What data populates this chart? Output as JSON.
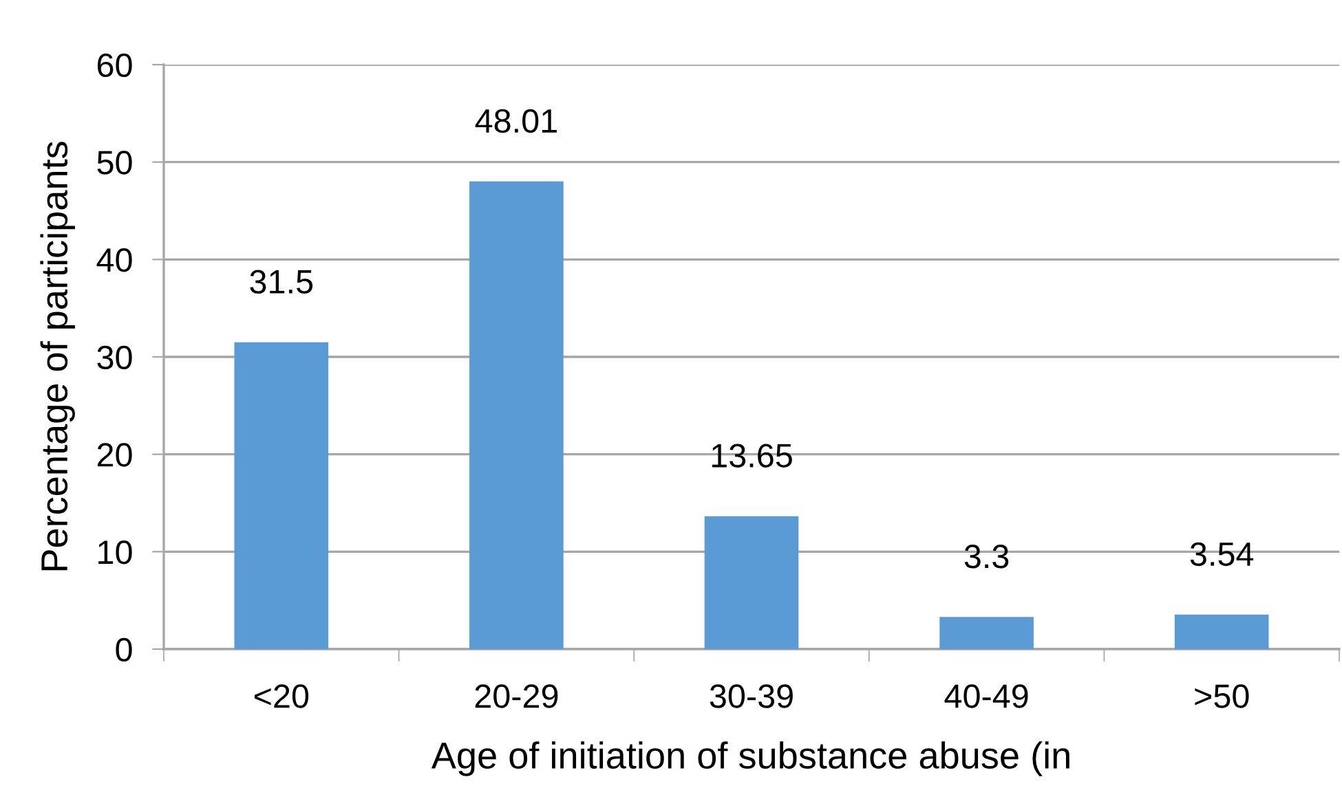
{
  "chart_data": {
    "type": "bar",
    "categories": [
      "<20",
      "20-29",
      "30-39",
      "40-49",
      ">50"
    ],
    "values": [
      31.5,
      48.01,
      13.65,
      3.3,
      3.54
    ],
    "color": "#5b9bd5",
    "xlabel": "Age of initiation of substance abuse (in",
    "ylabel": "Percentage of participants",
    "ylim": [
      0,
      60
    ],
    "yticks": [
      0,
      10,
      20,
      30,
      40,
      50,
      60
    ],
    "grid": "y",
    "data_labels": true
  }
}
